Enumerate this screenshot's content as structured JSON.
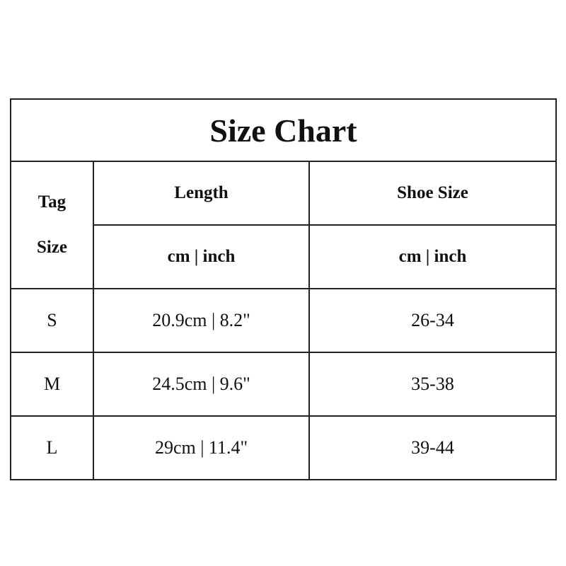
{
  "title": "Size Chart",
  "headers": {
    "tag_size_line1": "Tag",
    "tag_size_line2": "Size",
    "length": "Length",
    "shoe_size": "Shoe Size",
    "length_units": "cm | inch",
    "shoe_units": "cm | inch"
  },
  "rows": [
    {
      "size": "S",
      "length": "20.9cm | 8.2\"",
      "shoe": "26-34"
    },
    {
      "size": "M",
      "length": "24.5cm | 9.6\"",
      "shoe": "35-38"
    },
    {
      "size": "L",
      "length": "29cm | 11.4\"",
      "shoe": "39-44"
    }
  ]
}
